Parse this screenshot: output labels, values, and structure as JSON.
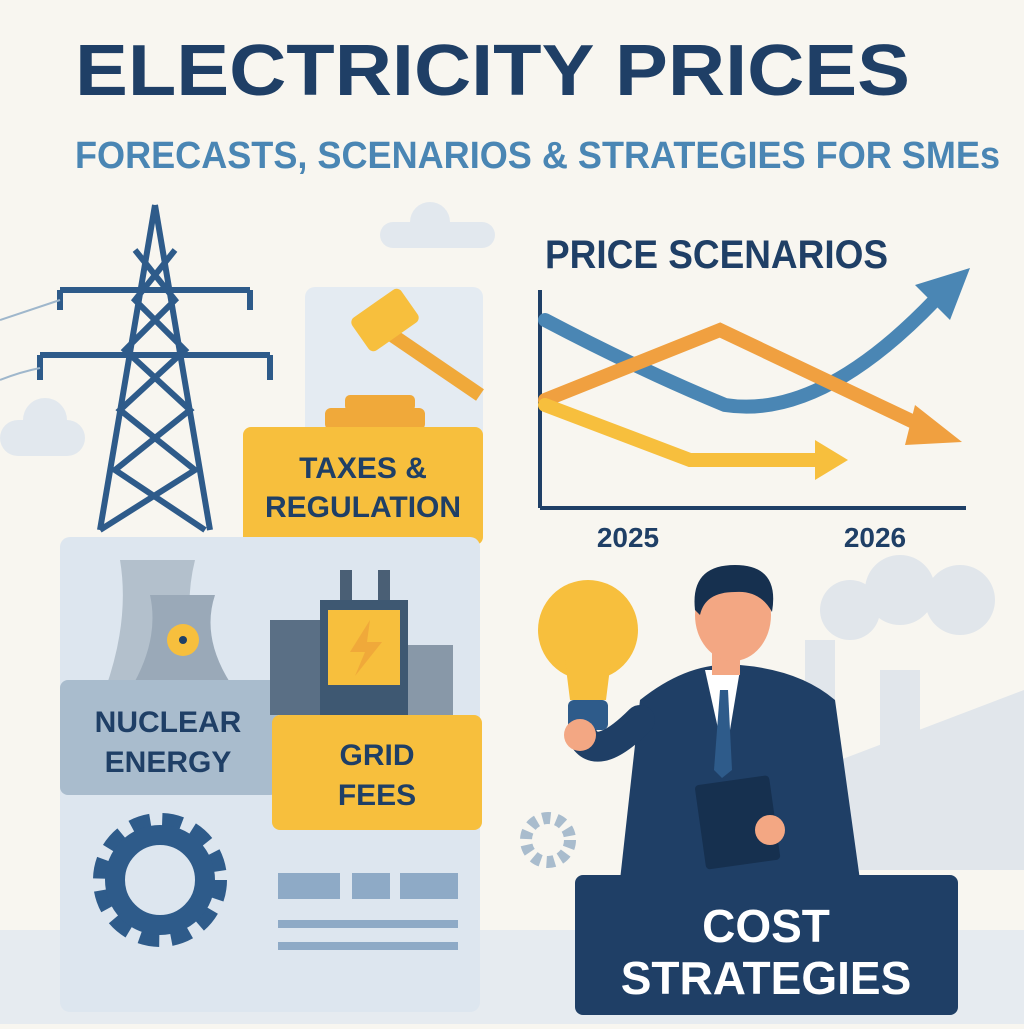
{
  "header": {
    "title": "ELECTRICITY PRICES",
    "subtitle": "FORECASTS, SCENARIOS & STRATEGIES FOR SMEs"
  },
  "taxes": {
    "lines": [
      "TAXES &",
      "REGULATION"
    ]
  },
  "nuclear": {
    "lines": [
      "NUCLEAR",
      "ENERGY"
    ]
  },
  "grid": {
    "lines": [
      "GRID",
      "FEES"
    ]
  },
  "chart": {
    "title": "PRICE SCENARIOS",
    "labels": [
      "2025",
      "2026"
    ]
  },
  "cost": {
    "lines": [
      "COST",
      "STRATEGIES"
    ]
  }
}
